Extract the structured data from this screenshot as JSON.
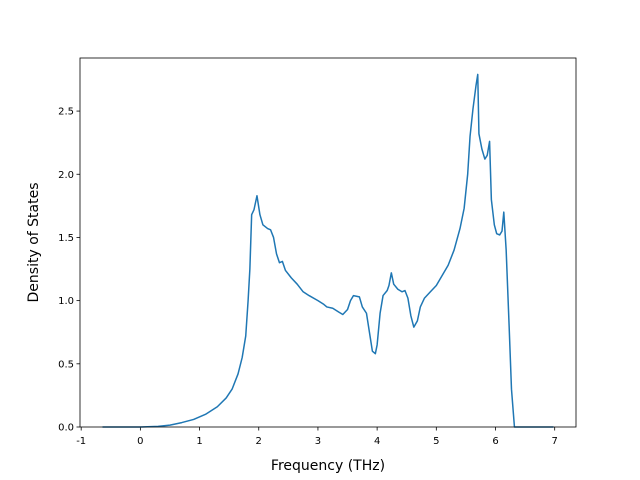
{
  "chart_data": {
    "type": "line",
    "xlabel": "Frequency (THz)",
    "ylabel": "Density of States",
    "xlim": [
      -1.02,
      7.36
    ],
    "ylim": [
      0,
      2.92
    ],
    "xticks": [
      -1,
      0,
      1,
      2,
      3,
      4,
      5,
      6,
      7
    ],
    "yticks": [
      {
        "value": 0,
        "label": "0.0"
      },
      0.5,
      {
        "value": 1,
        "label": "1.0"
      },
      1.5,
      {
        "value": 2,
        "label": "2.0"
      },
      2.5
    ],
    "series": [
      {
        "color": "#1f77b4",
        "x": [
          -0.64,
          0,
          0.3,
          0.5,
          0.7,
          0.9,
          1.1,
          1.3,
          1.45,
          1.55,
          1.65,
          1.72,
          1.78,
          1.82,
          1.85,
          1.88,
          1.92,
          1.97,
          2.02,
          2.07,
          2.15,
          2.2,
          2.25,
          2.3,
          2.35,
          2.4,
          2.45,
          2.55,
          2.65,
          2.75,
          2.85,
          3.0,
          3.1,
          3.15,
          3.25,
          3.35,
          3.42,
          3.5,
          3.55,
          3.6,
          3.7,
          3.75,
          3.82,
          3.88,
          3.92,
          3.97,
          4.0,
          4.05,
          4.1,
          4.17,
          4.2,
          4.24,
          4.28,
          4.35,
          4.42,
          4.47,
          4.52,
          4.57,
          4.62,
          4.68,
          4.73,
          4.8,
          4.9,
          5.0,
          5.1,
          5.2,
          5.3,
          5.4,
          5.47,
          5.53,
          5.57,
          5.62,
          5.67,
          5.7,
          5.72,
          5.77,
          5.82,
          5.86,
          5.9,
          5.93,
          5.98,
          6.02,
          6.07,
          6.11,
          6.14,
          6.18,
          6.23,
          6.27,
          6.32,
          6.98
        ],
        "values": [
          0,
          0,
          0.005,
          0.015,
          0.035,
          0.06,
          0.1,
          0.16,
          0.23,
          0.3,
          0.42,
          0.55,
          0.72,
          1.0,
          1.25,
          1.68,
          1.72,
          1.83,
          1.68,
          1.6,
          1.57,
          1.56,
          1.5,
          1.37,
          1.3,
          1.31,
          1.24,
          1.18,
          1.13,
          1.07,
          1.04,
          1.0,
          0.97,
          0.95,
          0.94,
          0.91,
          0.89,
          0.93,
          1.0,
          1.04,
          1.03,
          0.95,
          0.9,
          0.72,
          0.6,
          0.58,
          0.65,
          0.9,
          1.04,
          1.08,
          1.12,
          1.22,
          1.13,
          1.09,
          1.07,
          1.08,
          1.02,
          0.88,
          0.79,
          0.84,
          0.95,
          1.02,
          1.07,
          1.12,
          1.2,
          1.28,
          1.4,
          1.57,
          1.73,
          2.0,
          2.3,
          2.52,
          2.7,
          2.79,
          2.32,
          2.2,
          2.12,
          2.15,
          2.26,
          1.8,
          1.6,
          1.53,
          1.52,
          1.55,
          1.7,
          1.4,
          0.8,
          0.3,
          0,
          0
        ]
      }
    ]
  }
}
